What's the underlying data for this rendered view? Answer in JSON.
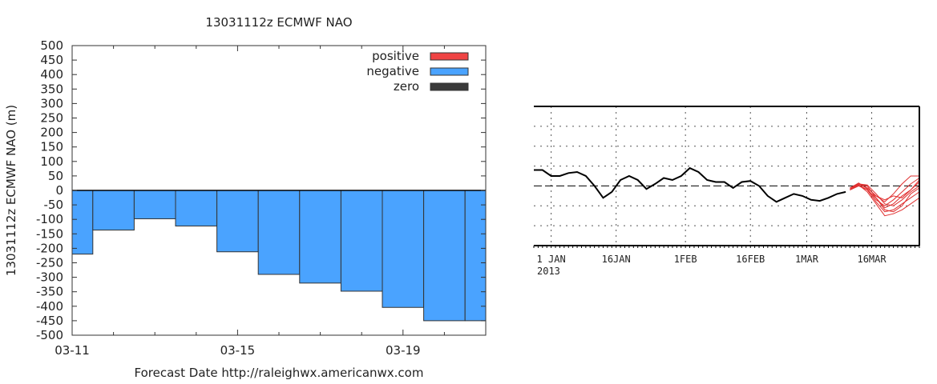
{
  "chart_data": [
    {
      "type": "bar",
      "title": "13031112z ECMWF NAO",
      "xlabel": "Forecast Date http://raleighwx.americanwx.com",
      "ylabel": "13031112z ECMWF NAO (m)",
      "ylim": [
        -500,
        500
      ],
      "yticks": [
        500,
        450,
        400,
        350,
        300,
        250,
        200,
        150,
        100,
        50,
        0,
        -50,
        -100,
        -150,
        -200,
        -250,
        -300,
        -350,
        -400,
        -450,
        -500
      ],
      "xlim": [
        0,
        10
      ],
      "xtick_labels": [
        {
          "x": 0,
          "label": "03-11"
        },
        {
          "x": 4,
          "label": "03-15"
        },
        {
          "x": 8,
          "label": "03-19"
        }
      ],
      "bars": [
        {
          "start": 0.0,
          "end": 0.5,
          "value": -220
        },
        {
          "start": 0.5,
          "end": 1.5,
          "value": -137
        },
        {
          "start": 1.5,
          "end": 2.5,
          "value": -98
        },
        {
          "start": 2.5,
          "end": 3.5,
          "value": -123
        },
        {
          "start": 3.5,
          "end": 4.5,
          "value": -212
        },
        {
          "start": 4.5,
          "end": 5.5,
          "value": -290
        },
        {
          "start": 5.5,
          "end": 6.5,
          "value": -320
        },
        {
          "start": 6.5,
          "end": 7.5,
          "value": -348
        },
        {
          "start": 7.5,
          "end": 8.5,
          "value": -404
        },
        {
          "start": 8.5,
          "end": 9.5,
          "value": -450
        },
        {
          "start": 9.5,
          "end": 10.0,
          "value": -450
        }
      ],
      "legend": [
        {
          "label": "positive",
          "color": "#ef4444"
        },
        {
          "label": "negative",
          "color": "#4aa3ff"
        },
        {
          "label": "zero",
          "color": "#3a3a3a"
        }
      ],
      "legend_position": "top-right",
      "colors": {
        "positive": "#ef4444",
        "negative": "#4aa3ff",
        "zero": "#000000"
      }
    },
    {
      "type": "line",
      "x_tick_labels": [
        "1 JAN",
        "16JAN",
        "1FEB",
        "16FEB",
        "1MAR",
        "16MAR"
      ],
      "x_tick_days": [
        1,
        16,
        32,
        47,
        60,
        75
      ],
      "year_label": "2013",
      "xlim_days": [
        -3,
        86
      ],
      "ylim": [
        -3,
        4
      ],
      "zero_line": 0,
      "series": [
        {
          "role": "observed",
          "color": "#000000",
          "points": [
            [
              -3,
              0.8
            ],
            [
              -1,
              0.8
            ],
            [
              1,
              0.5
            ],
            [
              3,
              0.5
            ],
            [
              5,
              0.65
            ],
            [
              7,
              0.7
            ],
            [
              9,
              0.5
            ],
            [
              11,
              0
            ],
            [
              13,
              -0.6
            ],
            [
              15,
              -0.3
            ],
            [
              17,
              0.3
            ],
            [
              19,
              0.5
            ],
            [
              21,
              0.3
            ],
            [
              23,
              -0.15
            ],
            [
              25,
              0.1
            ],
            [
              27,
              0.4
            ],
            [
              29,
              0.3
            ],
            [
              31,
              0.5
            ],
            [
              33,
              0.9
            ],
            [
              35,
              0.7
            ],
            [
              37,
              0.3
            ],
            [
              39,
              0.2
            ],
            [
              41,
              0.2
            ],
            [
              43,
              -0.1
            ],
            [
              45,
              0.2
            ],
            [
              47,
              0.25
            ],
            [
              49,
              0
            ],
            [
              51,
              -0.5
            ],
            [
              53,
              -0.8
            ],
            [
              55,
              -0.6
            ],
            [
              57,
              -0.4
            ],
            [
              59,
              -0.5
            ],
            [
              61,
              -0.7
            ],
            [
              63,
              -0.75
            ],
            [
              65,
              -0.6
            ],
            [
              67,
              -0.4
            ],
            [
              69,
              -0.3
            ]
          ]
        }
      ],
      "ensemble_color": "#e03030",
      "ensemble": [
        [
          [
            70,
            -0.2
          ],
          [
            72,
            0.1
          ],
          [
            74,
            0
          ],
          [
            76,
            -0.6
          ],
          [
            78,
            -1.1
          ],
          [
            80,
            -0.9
          ],
          [
            82,
            -0.5
          ],
          [
            84,
            -0.2
          ],
          [
            86,
            0.2
          ]
        ],
        [
          [
            70,
            -0.2
          ],
          [
            72,
            0
          ],
          [
            74,
            -0.2
          ],
          [
            76,
            -0.8
          ],
          [
            78,
            -1.3
          ],
          [
            80,
            -1.2
          ],
          [
            82,
            -0.9
          ],
          [
            84,
            -0.6
          ],
          [
            86,
            -0.3
          ]
        ],
        [
          [
            70,
            -0.1
          ],
          [
            72,
            0.1
          ],
          [
            74,
            -0.1
          ],
          [
            76,
            -0.5
          ],
          [
            78,
            -0.8
          ],
          [
            80,
            -0.4
          ],
          [
            82,
            0.1
          ],
          [
            84,
            0.5
          ],
          [
            86,
            0.5
          ]
        ],
        [
          [
            70,
            -0.2
          ],
          [
            72,
            0.05
          ],
          [
            74,
            -0.3
          ],
          [
            76,
            -0.9
          ],
          [
            78,
            -1.5
          ],
          [
            80,
            -1.4
          ],
          [
            82,
            -1.2
          ],
          [
            84,
            -0.9
          ],
          [
            86,
            -0.6
          ]
        ],
        [
          [
            70,
            -0.15
          ],
          [
            72,
            0.1
          ],
          [
            74,
            0.05
          ],
          [
            76,
            -0.4
          ],
          [
            78,
            -0.9
          ],
          [
            80,
            -1.0
          ],
          [
            82,
            -0.7
          ],
          [
            84,
            -0.3
          ],
          [
            86,
            0
          ]
        ],
        [
          [
            70,
            -0.1
          ],
          [
            72,
            0.15
          ],
          [
            74,
            -0.15
          ],
          [
            76,
            -0.7
          ],
          [
            78,
            -1.0
          ],
          [
            80,
            -0.7
          ],
          [
            82,
            -0.3
          ],
          [
            84,
            0.1
          ],
          [
            86,
            0.4
          ]
        ],
        [
          [
            70,
            -0.2
          ],
          [
            72,
            0.05
          ],
          [
            74,
            -0.2
          ],
          [
            76,
            -0.6
          ],
          [
            78,
            -1.2
          ],
          [
            80,
            -1.3
          ],
          [
            82,
            -1.0
          ],
          [
            84,
            -0.4
          ],
          [
            86,
            -0.1
          ]
        ],
        [
          [
            70,
            -0.1
          ],
          [
            72,
            0.1
          ],
          [
            74,
            -0.1
          ],
          [
            76,
            -0.5
          ],
          [
            78,
            -0.7
          ],
          [
            80,
            -0.5
          ],
          [
            82,
            -0.6
          ],
          [
            84,
            -0.2
          ],
          [
            86,
            0.3
          ]
        ]
      ],
      "grid": true
    }
  ]
}
